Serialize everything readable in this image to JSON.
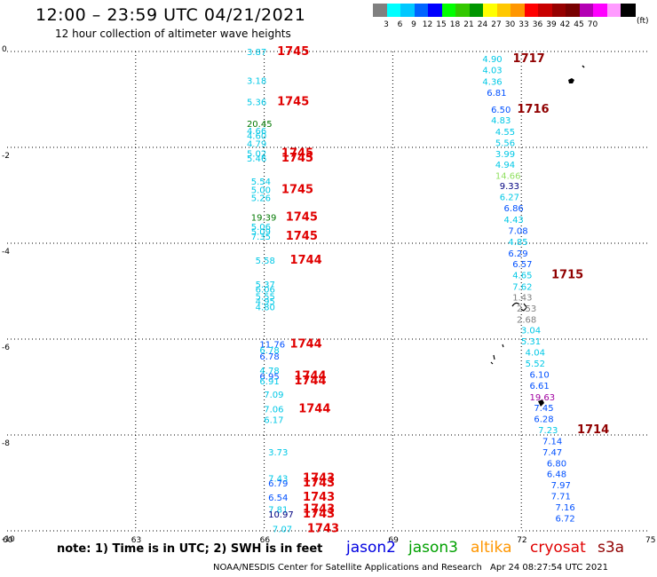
{
  "title": "12:00  –  23:59 UTC 04/21/2021",
  "subtitle": "12 hour collection of altimeter wave heights",
  "colorbar": {
    "unit": "(ft)",
    "colors": [
      "#808080",
      "#00ffff",
      "#00c8ff",
      "#0064ff",
      "#0000ff",
      "#00ff00",
      "#32c800",
      "#009600",
      "#ffff00",
      "#ffc800",
      "#ff9600",
      "#ff0000",
      "#c80000",
      "#960000",
      "#780000",
      "#b400b4",
      "#ff00ff",
      "#ff9bff",
      "#000000"
    ],
    "labels": [
      "3",
      "6",
      "9",
      "12",
      "15",
      "18",
      "21",
      "24",
      "27",
      "30",
      "33",
      "36",
      "39",
      "42",
      "45",
      "70"
    ]
  },
  "chart_data": {
    "type": "scatter",
    "title": "12:00  –  23:59 UTC 04/21/2021",
    "subtitle": "12 hour collection of altimeter wave heights",
    "xlim": [
      60,
      75
    ],
    "ylim": [
      -10,
      0
    ],
    "x_ticks": [
      "60",
      "63",
      "66",
      "69",
      "72",
      "75"
    ],
    "y_ticks": [
      "0",
      "-2",
      "-4",
      "-6",
      "-8",
      "-10"
    ],
    "grid": true,
    "value_colors": {
      "c": "#00c8e6",
      "b": "#0050ff",
      "g": "#007800",
      "n": "#000080",
      "p": "#a000a0",
      "gr": "#808080",
      "lg": "#90e060"
    },
    "time_colors": {
      "r": "#e00000",
      "d": "#900000"
    },
    "values": [
      {
        "x": 65.8,
        "y": 0.0,
        "v": "3.87",
        "c": "c"
      },
      {
        "x": 65.8,
        "y": -0.6,
        "v": "3.18",
        "c": "c"
      },
      {
        "x": 65.8,
        "y": -1.05,
        "v": "5.36",
        "c": "c"
      },
      {
        "x": 65.8,
        "y": -1.5,
        "v": "20.45",
        "c": "g"
      },
      {
        "x": 65.8,
        "y": -1.65,
        "v": "4.66",
        "c": "c"
      },
      {
        "x": 65.8,
        "y": -1.75,
        "v": "4.60",
        "c": "c"
      },
      {
        "x": 65.8,
        "y": -1.92,
        "v": "4.79",
        "c": "c"
      },
      {
        "x": 65.8,
        "y": -2.12,
        "v": "5.02",
        "c": "c"
      },
      {
        "x": 65.8,
        "y": -2.22,
        "v": "5.46",
        "c": "c"
      },
      {
        "x": 65.9,
        "y": -2.7,
        "v": "5.54",
        "c": "c"
      },
      {
        "x": 65.9,
        "y": -2.88,
        "v": "5.00",
        "c": "c"
      },
      {
        "x": 65.9,
        "y": -3.05,
        "v": "5.26",
        "c": "c"
      },
      {
        "x": 65.9,
        "y": -3.45,
        "v": "19.39",
        "c": "g"
      },
      {
        "x": 65.9,
        "y": -3.65,
        "v": "5.06",
        "c": "c"
      },
      {
        "x": 65.9,
        "y": -3.75,
        "v": "5.09",
        "c": "c"
      },
      {
        "x": 65.9,
        "y": -3.85,
        "v": "7.35",
        "c": "c"
      },
      {
        "x": 66.0,
        "y": -4.35,
        "v": "5.58",
        "c": "c"
      },
      {
        "x": 66.0,
        "y": -4.85,
        "v": "5.37",
        "c": "c"
      },
      {
        "x": 66.0,
        "y": -4.95,
        "v": "6.06",
        "c": "c"
      },
      {
        "x": 66.0,
        "y": -5.1,
        "v": "5.55",
        "c": "c"
      },
      {
        "x": 66.0,
        "y": -5.2,
        "v": "4.95",
        "c": "c"
      },
      {
        "x": 66.0,
        "y": -5.32,
        "v": "4.80",
        "c": "c"
      },
      {
        "x": 66.1,
        "y": -6.1,
        "v": "11.76",
        "c": "b"
      },
      {
        "x": 66.1,
        "y": -6.22,
        "v": "6.78",
        "c": "c"
      },
      {
        "x": 66.1,
        "y": -6.35,
        "v": "6.78",
        "c": "b"
      },
      {
        "x": 66.1,
        "y": -6.65,
        "v": "4.78",
        "c": "c"
      },
      {
        "x": 66.1,
        "y": -6.77,
        "v": "6.95",
        "c": "b"
      },
      {
        "x": 66.1,
        "y": -6.87,
        "v": "6.91",
        "c": "c"
      },
      {
        "x": 66.2,
        "y": -7.15,
        "v": "7.09",
        "c": "c"
      },
      {
        "x": 66.2,
        "y": -7.45,
        "v": "7.06",
        "c": "c"
      },
      {
        "x": 66.2,
        "y": -7.68,
        "v": "6.17",
        "c": "c"
      },
      {
        "x": 66.3,
        "y": -8.35,
        "v": "3.73",
        "c": "c"
      },
      {
        "x": 66.3,
        "y": -8.9,
        "v": "7.43",
        "c": "c"
      },
      {
        "x": 66.3,
        "y": -9.0,
        "v": "6.79",
        "c": "b"
      },
      {
        "x": 66.3,
        "y": -9.3,
        "v": "6.54",
        "c": "b"
      },
      {
        "x": 66.3,
        "y": -9.55,
        "v": "7.81",
        "c": "c"
      },
      {
        "x": 66.3,
        "y": -9.65,
        "v": "10.97",
        "c": "n"
      },
      {
        "x": 66.4,
        "y": -9.95,
        "v": "7.07",
        "c": "c"
      },
      {
        "x": 71.3,
        "y": -0.15,
        "v": "4.90",
        "c": "c"
      },
      {
        "x": 71.3,
        "y": -0.38,
        "v": "4.03",
        "c": "c"
      },
      {
        "x": 71.3,
        "y": -0.62,
        "v": "4.36",
        "c": "c"
      },
      {
        "x": 71.4,
        "y": -0.85,
        "v": "6.81",
        "c": "b"
      },
      {
        "x": 71.5,
        "y": -1.2,
        "v": "6.50",
        "c": "b"
      },
      {
        "x": 71.5,
        "y": -1.43,
        "v": "4.83",
        "c": "c"
      },
      {
        "x": 71.6,
        "y": -1.67,
        "v": "4.55",
        "c": "c"
      },
      {
        "x": 71.6,
        "y": -1.9,
        "v": "5.56",
        "c": "c"
      },
      {
        "x": 71.6,
        "y": -2.13,
        "v": "3.99",
        "c": "c"
      },
      {
        "x": 71.6,
        "y": -2.35,
        "v": "4.94",
        "c": "c"
      },
      {
        "x": 71.6,
        "y": -2.58,
        "v": "14.66",
        "c": "lg"
      },
      {
        "x": 71.7,
        "y": -2.8,
        "v": "9.33",
        "c": "n"
      },
      {
        "x": 71.7,
        "y": -3.03,
        "v": "6.27",
        "c": "c"
      },
      {
        "x": 71.8,
        "y": -3.26,
        "v": "6.86",
        "c": "b"
      },
      {
        "x": 71.8,
        "y": -3.5,
        "v": "4.43",
        "c": "c"
      },
      {
        "x": 71.9,
        "y": -3.73,
        "v": "7.08",
        "c": "b"
      },
      {
        "x": 71.9,
        "y": -3.96,
        "v": "4.85",
        "c": "c"
      },
      {
        "x": 71.9,
        "y": -4.2,
        "v": "6.29",
        "c": "b"
      },
      {
        "x": 72.0,
        "y": -4.43,
        "v": "6.57",
        "c": "b"
      },
      {
        "x": 72.0,
        "y": -4.66,
        "v": "4.65",
        "c": "c"
      },
      {
        "x": 72.0,
        "y": -4.9,
        "v": "7.62",
        "c": "c"
      },
      {
        "x": 72.0,
        "y": -5.12,
        "v": "1.43",
        "c": "gr"
      },
      {
        "x": 72.1,
        "y": -5.35,
        "v": "2.53",
        "c": "gr"
      },
      {
        "x": 72.1,
        "y": -5.58,
        "v": "2.68",
        "c": "gr"
      },
      {
        "x": 72.2,
        "y": -5.81,
        "v": "3.04",
        "c": "c"
      },
      {
        "x": 72.2,
        "y": -6.04,
        "v": "5.31",
        "c": "c"
      },
      {
        "x": 72.3,
        "y": -6.27,
        "v": "4.04",
        "c": "c"
      },
      {
        "x": 72.3,
        "y": -6.5,
        "v": "5.52",
        "c": "c"
      },
      {
        "x": 72.4,
        "y": -6.73,
        "v": "6.10",
        "c": "b"
      },
      {
        "x": 72.4,
        "y": -6.96,
        "v": "6.61",
        "c": "b"
      },
      {
        "x": 72.4,
        "y": -7.2,
        "v": "19.63",
        "c": "p"
      },
      {
        "x": 72.5,
        "y": -7.43,
        "v": "7.45",
        "c": "b"
      },
      {
        "x": 72.5,
        "y": -7.66,
        "v": "6.28",
        "c": "b"
      },
      {
        "x": 72.6,
        "y": -7.89,
        "v": "7.23",
        "c": "c"
      },
      {
        "x": 72.7,
        "y": -8.12,
        "v": "7.14",
        "c": "b"
      },
      {
        "x": 72.7,
        "y": -8.35,
        "v": "7.47",
        "c": "b"
      },
      {
        "x": 72.8,
        "y": -8.58,
        "v": "6.80",
        "c": "b"
      },
      {
        "x": 72.8,
        "y": -8.81,
        "v": "6.48",
        "c": "b"
      },
      {
        "x": 72.9,
        "y": -9.04,
        "v": "7.97",
        "c": "b"
      },
      {
        "x": 72.9,
        "y": -9.27,
        "v": "7.71",
        "c": "b"
      },
      {
        "x": 73.0,
        "y": -9.5,
        "v": "7.16",
        "c": "b"
      },
      {
        "x": 73.0,
        "y": -9.73,
        "v": "6.72",
        "c": "b"
      }
    ],
    "times": [
      {
        "x": 66.3,
        "y": 0.0,
        "t": "1745",
        "c": "r"
      },
      {
        "x": 66.3,
        "y": -1.05,
        "t": "1745",
        "c": "r"
      },
      {
        "x": 66.4,
        "y": -2.12,
        "t": "1745",
        "c": "r"
      },
      {
        "x": 66.4,
        "y": -2.22,
        "t": "1745",
        "c": "r"
      },
      {
        "x": 66.4,
        "y": -2.88,
        "t": "1745",
        "c": "r"
      },
      {
        "x": 66.5,
        "y": -3.45,
        "t": "1745",
        "c": "r"
      },
      {
        "x": 66.5,
        "y": -3.85,
        "t": "1745",
        "c": "r"
      },
      {
        "x": 66.6,
        "y": -4.35,
        "t": "1744",
        "c": "r"
      },
      {
        "x": 66.6,
        "y": -6.1,
        "t": "1744",
        "c": "r"
      },
      {
        "x": 66.7,
        "y": -6.77,
        "t": "1744",
        "c": "r"
      },
      {
        "x": 66.7,
        "y": -6.87,
        "t": "1744",
        "c": "r"
      },
      {
        "x": 66.8,
        "y": -7.45,
        "t": "1744",
        "c": "r"
      },
      {
        "x": 66.9,
        "y": -8.9,
        "t": "1743",
        "c": "r"
      },
      {
        "x": 66.9,
        "y": -9.0,
        "t": "1743",
        "c": "r"
      },
      {
        "x": 66.9,
        "y": -9.3,
        "t": "1743",
        "c": "r"
      },
      {
        "x": 66.9,
        "y": -9.55,
        "t": "1743",
        "c": "r"
      },
      {
        "x": 66.9,
        "y": -9.65,
        "t": "1743",
        "c": "r"
      },
      {
        "x": 67.0,
        "y": -9.95,
        "t": "1743",
        "c": "r"
      },
      {
        "x": 71.8,
        "y": -0.15,
        "t": "1717",
        "c": "d"
      },
      {
        "x": 71.9,
        "y": -1.2,
        "t": "1716",
        "c": "d"
      },
      {
        "x": 72.7,
        "y": -4.66,
        "t": "1715",
        "c": "d"
      },
      {
        "x": 73.3,
        "y": -7.89,
        "t": "1714",
        "c": "d"
      }
    ]
  },
  "note": "note:  1) Time is in UTC;  2) SWH is in feet",
  "satellites": [
    {
      "name": "jason2",
      "color": "#0000e0"
    },
    {
      "name": "jason3",
      "color": "#00a000"
    },
    {
      "name": "altika",
      "color": "#ff9600"
    },
    {
      "name": "cryosat",
      "color": "#e00000"
    },
    {
      "name": "s3a",
      "color": "#900000"
    }
  ],
  "footer_left": "NOAA/NESDIS Center for Satellite Applications and Research",
  "footer_right": "Apr 24 08:27:54 UTC 2021"
}
